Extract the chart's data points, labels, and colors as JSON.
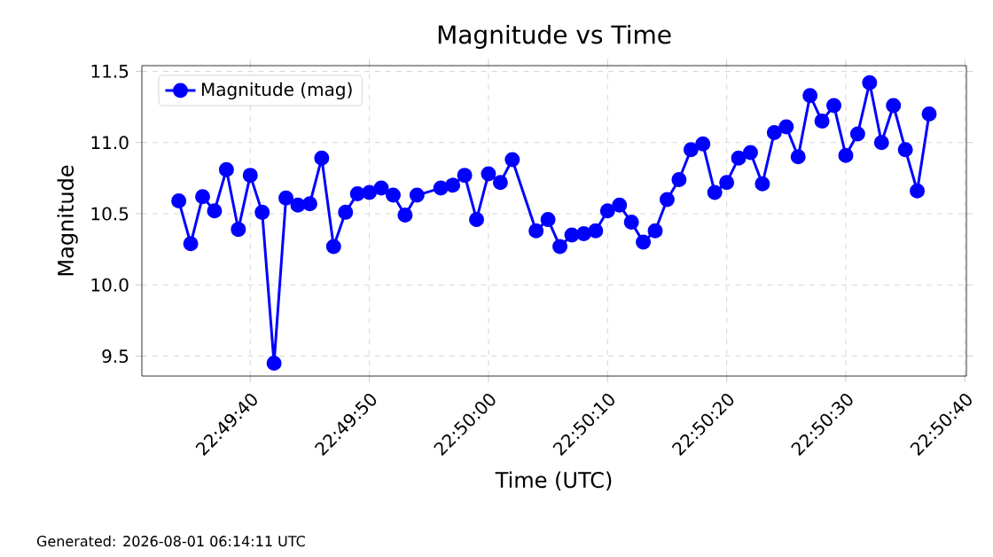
{
  "chart_data": {
    "type": "line",
    "title": "Magnitude vs Time",
    "xlabel": "Time (UTC)",
    "ylabel": "Magnitude",
    "x": [
      22.826111,
      22.826389,
      22.826667,
      22.826944,
      22.827222,
      22.8275,
      22.827778,
      22.828056,
      22.828333,
      22.828611,
      22.828889,
      22.829167,
      22.829444,
      22.829722,
      22.83,
      22.830278,
      22.830556,
      22.830833,
      22.831111,
      22.831389,
      22.831667,
      22.832222,
      22.8325,
      22.832778,
      22.833056,
      22.833333,
      22.833611,
      22.833889,
      22.834444,
      22.834722,
      22.835,
      22.835278,
      22.835556,
      22.835833,
      22.836111,
      22.836389,
      22.836667,
      22.836944,
      22.837222,
      22.8375,
      22.837778,
      22.838056,
      22.838333,
      22.838611,
      22.838889,
      22.839167,
      22.839444,
      22.839722,
      22.84,
      22.840278,
      22.840556,
      22.840833,
      22.841111,
      22.841389,
      22.841667,
      22.841944,
      22.842222,
      22.8425,
      22.842778,
      22.843056,
      22.843333,
      22.843611
    ],
    "series": [
      {
        "name": "Magnitude (mag)",
        "color": "#0000ff",
        "values": [
          10.59,
          10.29,
          10.62,
          10.52,
          10.81,
          10.39,
          10.77,
          10.51,
          9.45,
          10.61,
          10.56,
          10.57,
          10.89,
          10.27,
          10.51,
          10.64,
          10.65,
          10.68,
          10.63,
          10.49,
          10.63,
          10.68,
          10.7,
          10.77,
          10.46,
          10.78,
          10.72,
          10.88,
          10.38,
          10.46,
          10.27,
          10.35,
          10.36,
          10.38,
          10.52,
          10.56,
          10.44,
          10.3,
          10.38,
          10.6,
          10.74,
          10.95,
          10.99,
          10.65,
          10.72,
          10.89,
          10.93,
          10.71,
          11.07,
          11.11,
          10.9,
          11.33,
          11.15,
          11.26,
          10.91,
          11.06,
          11.42,
          11.0,
          11.26,
          10.95,
          10.66,
          11.2
        ]
      }
    ],
    "xlim": [
      22.82525,
      22.84448
    ],
    "xticks": [
      {
        "value": 22.827778,
        "label": "22:49:40"
      },
      {
        "value": 22.830556,
        "label": "22:49:50"
      },
      {
        "value": 22.833333,
        "label": "22:50:00"
      },
      {
        "value": 22.836111,
        "label": "22:50:10"
      },
      {
        "value": 22.838889,
        "label": "22:50:20"
      },
      {
        "value": 22.841667,
        "label": "22:50:30"
      },
      {
        "value": 22.844444,
        "label": "22:50:40"
      }
    ],
    "ylim": [
      9.36,
      11.54
    ],
    "yticks": [
      9.5,
      {
        "value": 10,
        "label": "10.0"
      },
      10.5,
      {
        "value": 11,
        "label": "11.0"
      },
      11.5
    ],
    "grid": true,
    "legend": "top left",
    "marker": "circle",
    "line_style": "solid",
    "annotations": [
      "Generated: 2026-08-01 06:14:11 UTC"
    ]
  }
}
